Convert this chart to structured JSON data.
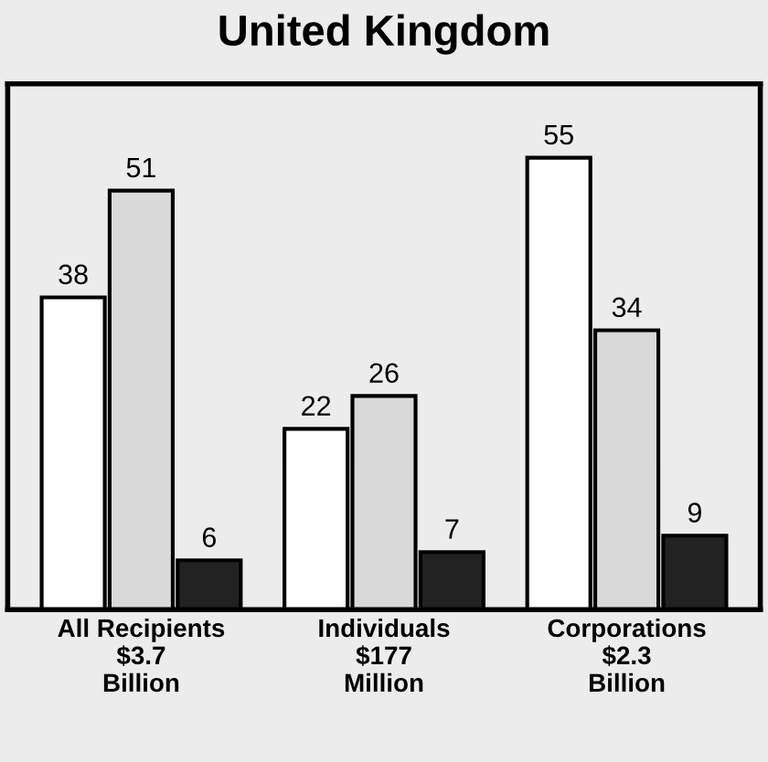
{
  "chart_data": {
    "type": "bar",
    "title": "United Kingdom",
    "categories": [
      "All Recipients\n$3.7\nBillion",
      "Individuals\n$177\nMillion",
      "Corporations\n$2.3\nBillion"
    ],
    "series": [
      {
        "color": "#ffffff",
        "values": [
          38,
          22,
          55
        ]
      },
      {
        "color": "#d9d9d9",
        "values": [
          51,
          26,
          34
        ]
      },
      {
        "color": "#222222",
        "values": [
          6,
          7,
          9
        ]
      }
    ],
    "ylim": [
      0,
      64
    ],
    "data_labels": true,
    "tick_labels": "x",
    "grid": false,
    "legend": false
  }
}
